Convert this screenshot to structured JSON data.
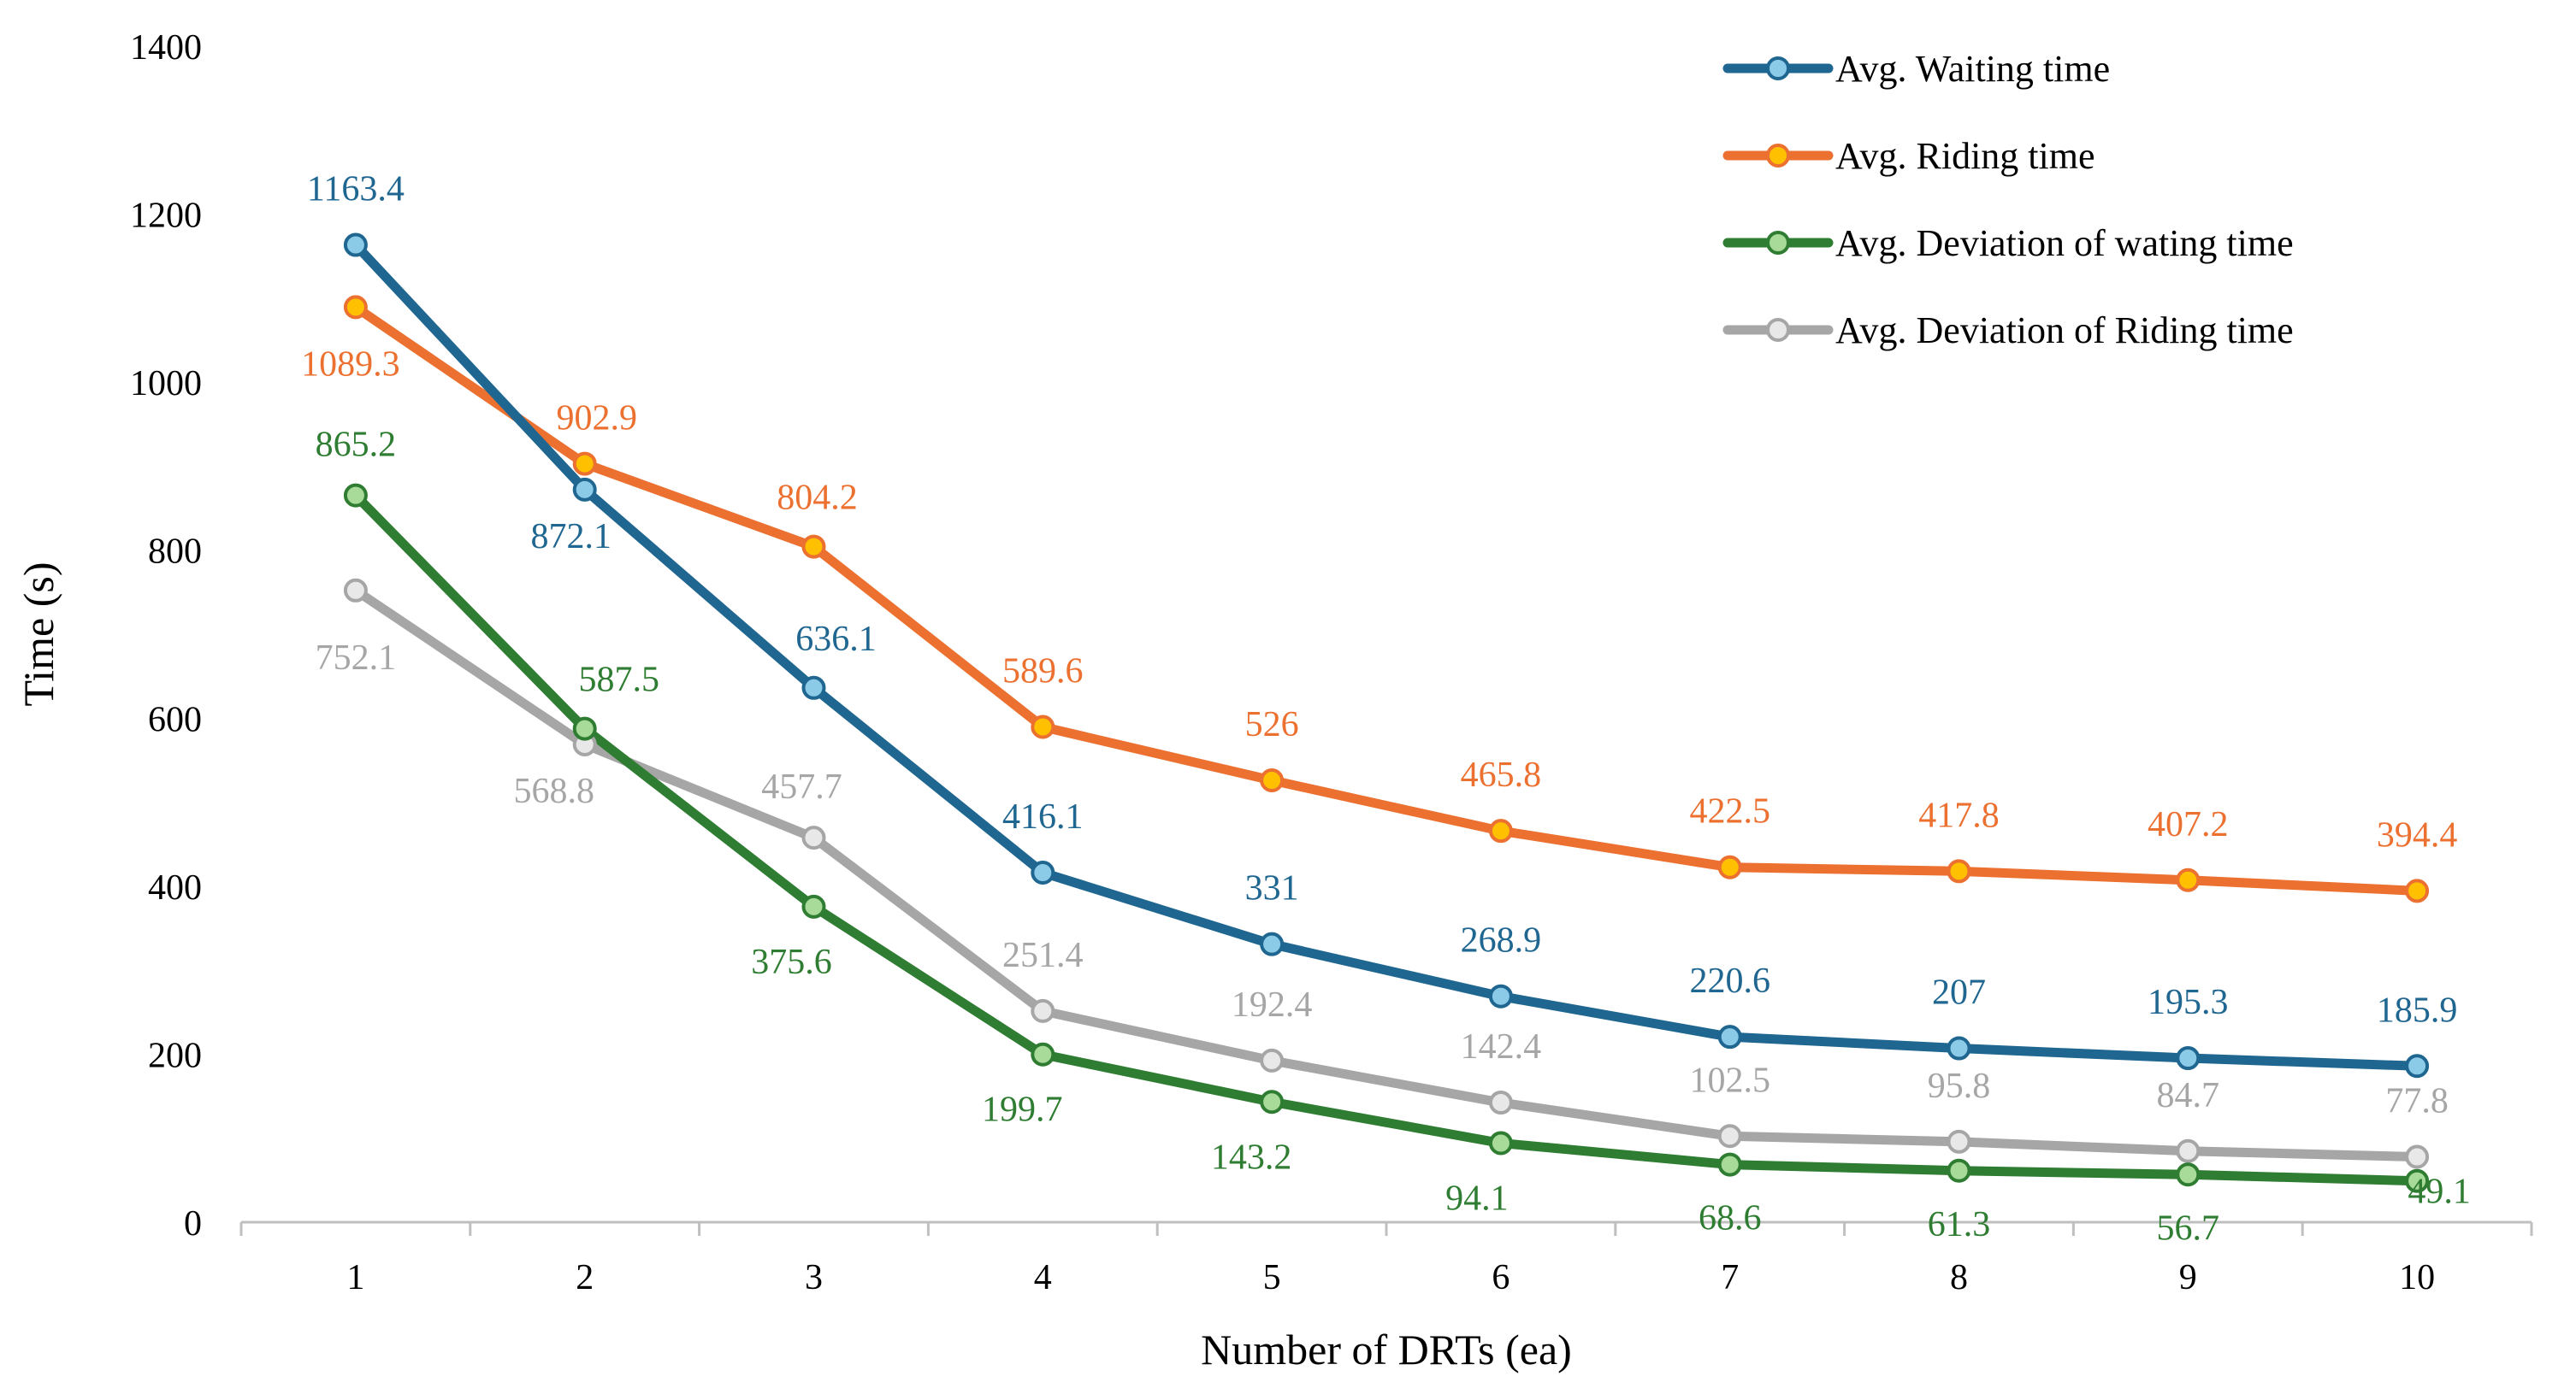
{
  "chart_data": {
    "type": "line",
    "title": "",
    "xlabel": "Number of DRTs (ea)",
    "ylabel": "Time (s)",
    "categories": [
      "1",
      "2",
      "3",
      "4",
      "5",
      "6",
      "7",
      "8",
      "9",
      "10"
    ],
    "ylim": [
      0,
      1400
    ],
    "yticks": [
      "0",
      "200",
      "400",
      "600",
      "800",
      "1000",
      "1200",
      "1400"
    ],
    "grid": false,
    "legend_position": "top-right",
    "series": [
      {
        "name": "Avg. Waiting time",
        "color": "#1F6690",
        "marker_fill": "#8CCBE8",
        "values": [
          1163.4,
          872.1,
          636.1,
          416.1,
          331,
          268.9,
          220.6,
          207,
          195.3,
          185.9
        ],
        "labels": [
          "1163.4",
          "872.1",
          "636.1",
          "416.1",
          "331",
          "268.9",
          "220.6",
          "207",
          "195.3",
          "185.9"
        ]
      },
      {
        "name": "Avg. Riding time",
        "color": "#EC7030",
        "marker_fill": "#FFC000",
        "values": [
          1089.3,
          902.9,
          804.2,
          589.6,
          526,
          465.8,
          422.5,
          417.8,
          407.2,
          394.4
        ],
        "labels": [
          "1089.3",
          "902.9",
          "804.2",
          "589.6",
          "526",
          "465.8",
          "422.5",
          "417.8",
          "407.2",
          "394.4"
        ]
      },
      {
        "name": "Avg. Deviation of wating time",
        "color": "#2F7D32",
        "marker_fill": "#A8DA9A",
        "values": [
          865.2,
          587.5,
          375.6,
          199.7,
          143.2,
          94.1,
          68.6,
          61.3,
          56.7,
          49.1
        ],
        "labels": [
          "865.2",
          "587.5",
          "375.6",
          "199.7",
          "143.2",
          "94.1",
          "68.6",
          "61.3",
          "56.7",
          "49.1"
        ]
      },
      {
        "name": "Avg. Deviation of Riding time",
        "color": "#A6A6A6",
        "marker_fill": "#E8E8E8",
        "values": [
          752.1,
          568.8,
          457.7,
          251.4,
          192.4,
          142.4,
          102.5,
          95.8,
          84.7,
          77.8
        ],
        "labels": [
          "752.1",
          "568.8",
          "457.7",
          "251.4",
          "192.4",
          "142.4",
          "102.5",
          "95.8",
          "84.7",
          "77.8"
        ]
      }
    ]
  }
}
